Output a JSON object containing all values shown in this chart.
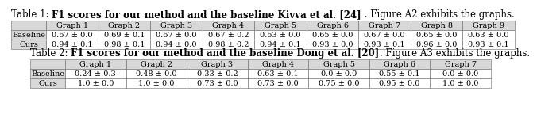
{
  "table1_prefix": "Table 1: ",
  "table1_bold": "F1 scores for our method and the baseline Kivva et al. [24]",
  "table1_suffix": " . Figure A2 exhibits the graphs.",
  "table1_cols": [
    "",
    "Graph 1",
    "Graph 2",
    "Graph 3",
    "Graph 4",
    "Graph 5",
    "Graph 6",
    "Graph 7",
    "Graph 8",
    "Graph 9"
  ],
  "table1_rows": [
    [
      "Baseline",
      "0.67 ± 0.0",
      "0.69 ± 0.1",
      "0.67 ± 0.0",
      "0.67 ± 0.2",
      "0.63 ± 0.0",
      "0.65 ± 0.0",
      "0.67 ± 0.0",
      "0.65 ± 0.0",
      "0.63 ± 0.0"
    ],
    [
      "Ours",
      "0.94 ± 0.1",
      "0.98 ± 0.1",
      "0.94 ± 0.0",
      "0.98 ± 0.2",
      "0.94 ± 0.1",
      "0.93 ± 0.0",
      "0.93 ± 0.1",
      "0.96 ± 0.0",
      "0.93 ± 0.1"
    ]
  ],
  "table2_prefix": "Table 2: ",
  "table2_bold": "F1 scores for our method and the baseline Dong et al. [20]",
  "table2_suffix": ". Figure A3 exhibits the graphs.",
  "table2_cols": [
    "",
    "Graph 1",
    "Graph 2",
    "Graph 3",
    "Graph 4",
    "Graph 5",
    "Graph 6",
    "Graph 7"
  ],
  "table2_rows": [
    [
      "Baseline",
      "0.24 ± 0.3",
      "0.48 ± 0.0",
      "0.33 ± 0.2",
      "0.63 ± 0.1",
      "0.0 ± 0.0",
      "0.55 ± 0.1",
      "0.0 ± 0.0"
    ],
    [
      "Ours",
      "1.0 ± 0.0",
      "1.0 ± 0.0",
      "0.73 ± 0.0",
      "0.73 ± 0.0",
      "0.75 ± 0.0",
      "0.95 ± 0.0",
      "1.0 ± 0.0"
    ]
  ],
  "bg_color": "#ffffff",
  "header_bg": "#d8d8d8",
  "cell_bg": "#ffffff",
  "border_color": "#666666",
  "title_fs": 8.5,
  "cell_fs": 7.0
}
